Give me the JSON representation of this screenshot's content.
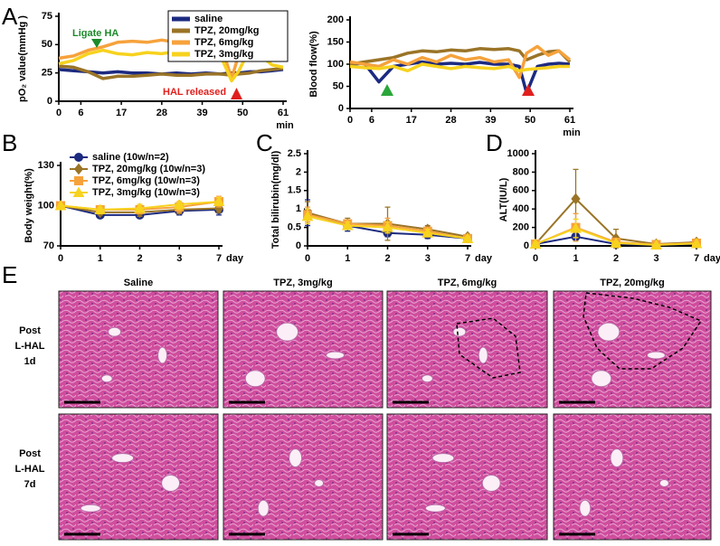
{
  "panel_labels": [
    "A",
    "B",
    "C",
    "D",
    "E"
  ],
  "chart_data": [
    {
      "type": "line",
      "y_label": "pO₂ value(mmHg )",
      "x_label": "min",
      "x": [
        0,
        4,
        8,
        12,
        16,
        20,
        24,
        28,
        32,
        36,
        40,
        44,
        47,
        49,
        52,
        55,
        58,
        61
      ],
      "xlim": [
        0,
        61
      ],
      "xticks": [
        0,
        6,
        17,
        28,
        39,
        50,
        61
      ],
      "ylim": [
        0,
        75
      ],
      "yticks": [
        0,
        25,
        50,
        75
      ],
      "legend": "upper right",
      "annotations": [
        "Ligate  HA",
        "HAL released"
      ],
      "series": [
        {
          "name": "saline",
          "color": "#1c2a80",
          "values": [
            28,
            27,
            26,
            25,
            26,
            25,
            25,
            24,
            25,
            24,
            25,
            24,
            25,
            25,
            26,
            26,
            27,
            28
          ]
        },
        {
          "name": "TPZ, 20mg/kg",
          "color": "#9a7427",
          "values": [
            31,
            30,
            26,
            20,
            22,
            22,
            23,
            24,
            23,
            23,
            24,
            24,
            23,
            24,
            25,
            27,
            28,
            29
          ]
        },
        {
          "name": "TPZ, 6mg/kg",
          "color": "#f6a23c",
          "values": [
            38,
            40,
            45,
            48,
            52,
            53,
            52,
            54,
            52,
            50,
            52,
            51,
            20,
            42,
            45,
            44,
            42,
            40
          ]
        },
        {
          "name": "TPZ, 3mg/kg",
          "color": "#f7d21e",
          "values": [
            33,
            36,
            42,
            45,
            42,
            41,
            43,
            42,
            44,
            42,
            41,
            40,
            18,
            27,
            47,
            40,
            32,
            30
          ]
        }
      ]
    },
    {
      "type": "line",
      "y_label": "Blood flow(%)",
      "x_label": "min",
      "x": [
        0,
        4,
        8,
        12,
        16,
        20,
        24,
        28,
        32,
        36,
        40,
        44,
        47,
        49,
        52,
        55,
        58,
        61
      ],
      "xlim": [
        0,
        61
      ],
      "xticks": [
        0,
        6,
        17,
        28,
        39,
        50,
        61
      ],
      "ylim": [
        0,
        200
      ],
      "yticks": [
        0,
        50,
        100,
        150,
        200
      ],
      "series": [
        {
          "name": "saline",
          "color": "#1c2a80",
          "values": [
            100,
            102,
            60,
            95,
            100,
            105,
            100,
            102,
            100,
            104,
            100,
            100,
            95,
            35,
            95,
            100,
            102,
            100
          ]
        },
        {
          "name": "TPZ, 20mg/kg",
          "color": "#9a7427",
          "values": [
            100,
            105,
            110,
            115,
            125,
            130,
            128,
            132,
            130,
            135,
            133,
            135,
            130,
            110,
            120,
            128,
            130,
            105
          ]
        },
        {
          "name": "TPZ, 6mg/kg",
          "color": "#f6a23c",
          "values": [
            105,
            100,
            95,
            110,
            100,
            115,
            105,
            120,
            110,
            115,
            105,
            110,
            70,
            125,
            140,
            120,
            130,
            110
          ]
        },
        {
          "name": "TPZ, 3mg/kg",
          "color": "#f7d21e",
          "values": [
            95,
            92,
            90,
            95,
            85,
            100,
            95,
            90,
            95,
            92,
            90,
            95,
            85,
            88,
            90,
            92,
            95,
            95
          ]
        }
      ]
    },
    {
      "type": "line",
      "y_label": "Body weight(%)",
      "x_label": "day",
      "categories": [
        "0",
        "1",
        "2",
        "3",
        "7"
      ],
      "ylim": [
        70,
        130
      ],
      "yticks": [
        70,
        100,
        130
      ],
      "legend": "upper left",
      "series": [
        {
          "name": "saline (10w/n=2)",
          "color": "#1c2a80",
          "marker": "circle",
          "values": [
            100,
            93,
            93,
            96,
            97
          ],
          "errors": [
            1,
            2,
            2,
            3,
            4
          ]
        },
        {
          "name": "TPZ, 20mg/kg (10w/n=3)",
          "color": "#9a7427",
          "marker": "diamond",
          "values": [
            100,
            95,
            95,
            97,
            98
          ],
          "errors": [
            1,
            2,
            3,
            3,
            3
          ]
        },
        {
          "name": "TPZ, 6mg/kg (10w/n=3)",
          "color": "#f6a23c",
          "marker": "square",
          "values": [
            100,
            97,
            97,
            99,
            103
          ],
          "errors": [
            1,
            2,
            3,
            4,
            4
          ]
        },
        {
          "name": "TPZ, 3mg/kg (10w/n=3)",
          "color": "#f7d21e",
          "marker": "triangle",
          "values": [
            100,
            97,
            98,
            101,
            103
          ],
          "errors": [
            1,
            2,
            3,
            4,
            3
          ]
        }
      ]
    },
    {
      "type": "line",
      "y_label": "Total bilirubin(mg/dl)",
      "x_label": "day",
      "categories": [
        "0",
        "1",
        "2",
        "3",
        "7"
      ],
      "ylim": [
        0,
        2.5
      ],
      "yticks": [
        0,
        0.5,
        1,
        1.5,
        2,
        2.5
      ],
      "series": [
        {
          "name": "saline",
          "color": "#1c2a80",
          "marker": "circle",
          "values": [
            0.9,
            0.55,
            0.35,
            0.3,
            0.2
          ],
          "errors": [
            0.35,
            0.15,
            0.1,
            0.1,
            0.05
          ]
        },
        {
          "name": "TPZ, 20mg/kg",
          "color": "#9a7427",
          "marker": "diamond",
          "values": [
            0.9,
            0.6,
            0.6,
            0.45,
            0.25
          ],
          "errors": [
            0.3,
            0.15,
            0.45,
            0.1,
            0.05
          ]
        },
        {
          "name": "TPZ, 6mg/kg",
          "color": "#f6a23c",
          "marker": "square",
          "values": [
            0.85,
            0.6,
            0.55,
            0.4,
            0.2
          ],
          "errors": [
            0.2,
            0.1,
            0.2,
            0.1,
            0.05
          ]
        },
        {
          "name": "TPZ, 3mg/kg",
          "color": "#f7d21e",
          "marker": "triangle",
          "values": [
            0.8,
            0.55,
            0.5,
            0.35,
            0.2
          ],
          "errors": [
            0.2,
            0.1,
            0.15,
            0.1,
            0.05
          ]
        }
      ]
    },
    {
      "type": "line",
      "y_label": "ALT(IU/L)",
      "x_label": "day",
      "categories": [
        "0",
        "1",
        "2",
        "3",
        "7"
      ],
      "ylim": [
        0,
        1000
      ],
      "yticks": [
        0,
        200,
        400,
        600,
        800,
        1000
      ],
      "series": [
        {
          "name": "saline",
          "color": "#1c2a80",
          "marker": "circle",
          "values": [
            20,
            100,
            20,
            10,
            20
          ],
          "errors": [
            5,
            30,
            5,
            5,
            10
          ]
        },
        {
          "name": "TPZ, 20mg/kg",
          "color": "#9a7427",
          "marker": "diamond",
          "values": [
            20,
            510,
            80,
            20,
            40
          ],
          "errors": [
            5,
            320,
            100,
            10,
            20
          ]
        },
        {
          "name": "TPZ, 6mg/kg",
          "color": "#f6a23c",
          "marker": "square",
          "values": [
            20,
            200,
            40,
            15,
            30
          ],
          "errors": [
            5,
            150,
            20,
            5,
            15
          ]
        },
        {
          "name": "TPZ, 3mg/kg",
          "color": "#f7d21e",
          "marker": "triangle",
          "values": [
            20,
            190,
            30,
            10,
            25
          ],
          "errors": [
            5,
            100,
            15,
            5,
            10
          ]
        }
      ]
    }
  ],
  "histology": {
    "columns": [
      "Saline",
      "TPZ, 3mg/kg",
      "TPZ, 6mg/kg",
      "TPZ, 20mg/kg"
    ],
    "rows": [
      [
        "Post",
        "L-HAL",
        "1d"
      ],
      [
        "Post",
        "L-HAL",
        "7d"
      ]
    ]
  }
}
